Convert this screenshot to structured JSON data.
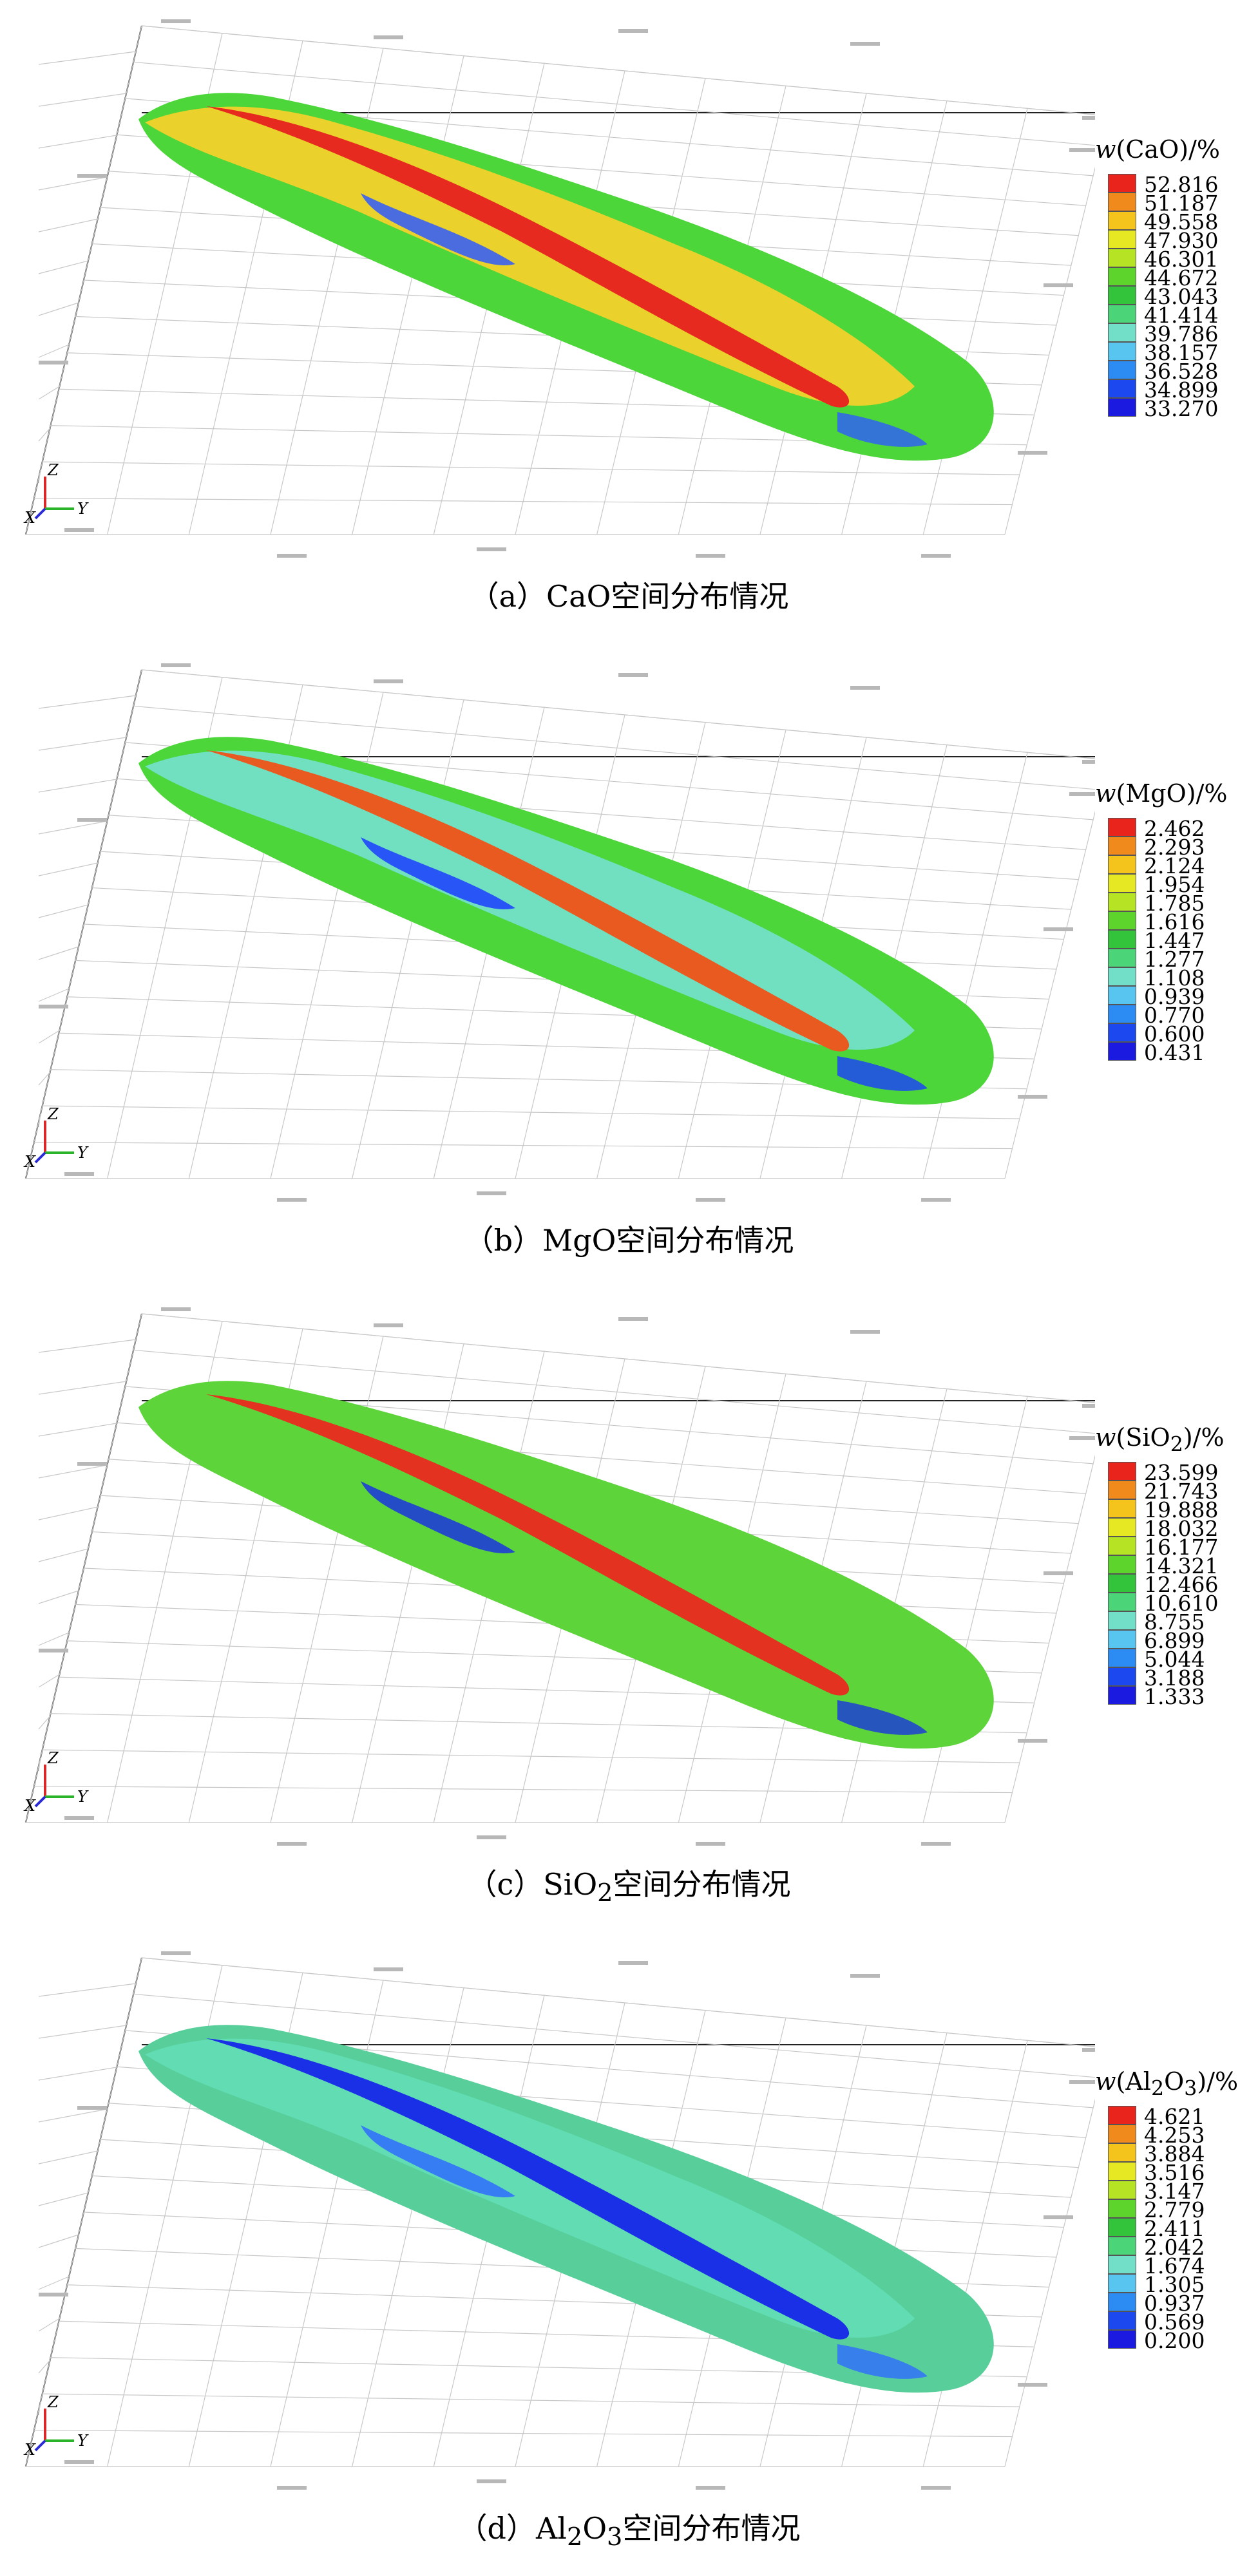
{
  "panels": [
    {
      "id": "a",
      "caption_prefix": "（a）",
      "caption_formula": "CaO",
      "caption_suffix": "空间分布情况",
      "legend": {
        "title_w": "w",
        "title_formula": "(CaO)",
        "title_unit": "/%",
        "ticks": [
          "52.816",
          "51.187",
          "49.558",
          "47.930",
          "46.301",
          "44.672",
          "43.043",
          "41.414",
          "39.786",
          "38.157",
          "36.528",
          "34.899",
          "33.270"
        ]
      },
      "body_color": "#f2d12a",
      "vein_color": "#e62a1f",
      "side_color": "#4cd63a",
      "accent_color": "#2f5bff"
    },
    {
      "id": "b",
      "caption_prefix": "（b）",
      "caption_formula": "MgO",
      "caption_suffix": "空间分布情况",
      "legend": {
        "title_w": "w",
        "title_formula": "(MgO)",
        "title_unit": "/%",
        "ticks": [
          "2.462",
          "2.293",
          "2.124",
          "1.954",
          "1.785",
          "1.616",
          "1.447",
          "1.277",
          "1.108",
          "0.939",
          "0.770",
          "0.600",
          "0.431"
        ]
      },
      "body_color": "#72e0c8",
      "vein_color": "#e85a1f",
      "side_color": "#4cd63a",
      "accent_color": "#1a3cff"
    },
    {
      "id": "c",
      "caption_prefix": "（c）",
      "caption_formula": "SiO",
      "caption_sub": "2",
      "caption_suffix": "空间分布情况",
      "legend": {
        "title_w": "w",
        "title_formula": "(SiO",
        "title_sub": "2",
        "title_close": ")",
        "title_unit": "/%",
        "ticks": [
          "23.599",
          "21.743",
          "19.888",
          "18.032",
          "16.177",
          "14.321",
          "12.466",
          "10.610",
          "8.755",
          "6.899",
          "5.044",
          "3.188",
          "1.333"
        ]
      },
      "body_color": "#5cd43a",
      "vein_color": "#e3321f",
      "side_color": "#5cd43a",
      "accent_color": "#1a34e0"
    },
    {
      "id": "d",
      "caption_prefix": "（d）",
      "caption_formula": "Al",
      "caption_sub": "2",
      "caption_formula2": "O",
      "caption_sub2": "3",
      "caption_suffix": "空间分布情况",
      "legend": {
        "title_w": "w",
        "title_formula": "(Al",
        "title_sub": "2",
        "title_formula2": "O",
        "title_sub2": "3",
        "title_close": ")",
        "title_unit": "/%",
        "ticks": [
          "4.621",
          "4.253",
          "3.884",
          "3.516",
          "3.147",
          "2.779",
          "2.411",
          "2.042",
          "1.674",
          "1.305",
          "0.937",
          "0.569",
          "0.200"
        ]
      },
      "body_color": "#62dcb4",
      "vein_color": "#1a30e6",
      "side_color": "#58cf9a",
      "accent_color": "#2f6cff"
    }
  ],
  "scale_colors": [
    "#e8241c",
    "#f08a1c",
    "#f4c41c",
    "#e6e824",
    "#b6e424",
    "#5cd42c",
    "#34c43c",
    "#4cd478",
    "#72e0c8",
    "#58c4f0",
    "#2c8cf4",
    "#1c48f0",
    "#1a1ae0"
  ],
  "axes": {
    "z": "Z",
    "x": "X",
    "y": "Y"
  },
  "axis_colors": {
    "z": "#d62a2a",
    "x": "#2a2ad6",
    "y": "#2ab42a"
  }
}
